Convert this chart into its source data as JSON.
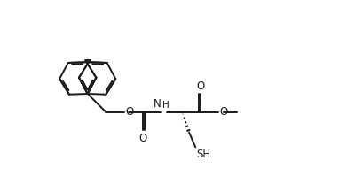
{
  "bg_color": "#ffffff",
  "line_color": "#1a1a1a",
  "line_width": 1.4,
  "figsize": [
    4.0,
    2.08
  ],
  "dpi": 100,
  "xlim": [
    0,
    10
  ],
  "ylim": [
    0,
    5.2
  ]
}
